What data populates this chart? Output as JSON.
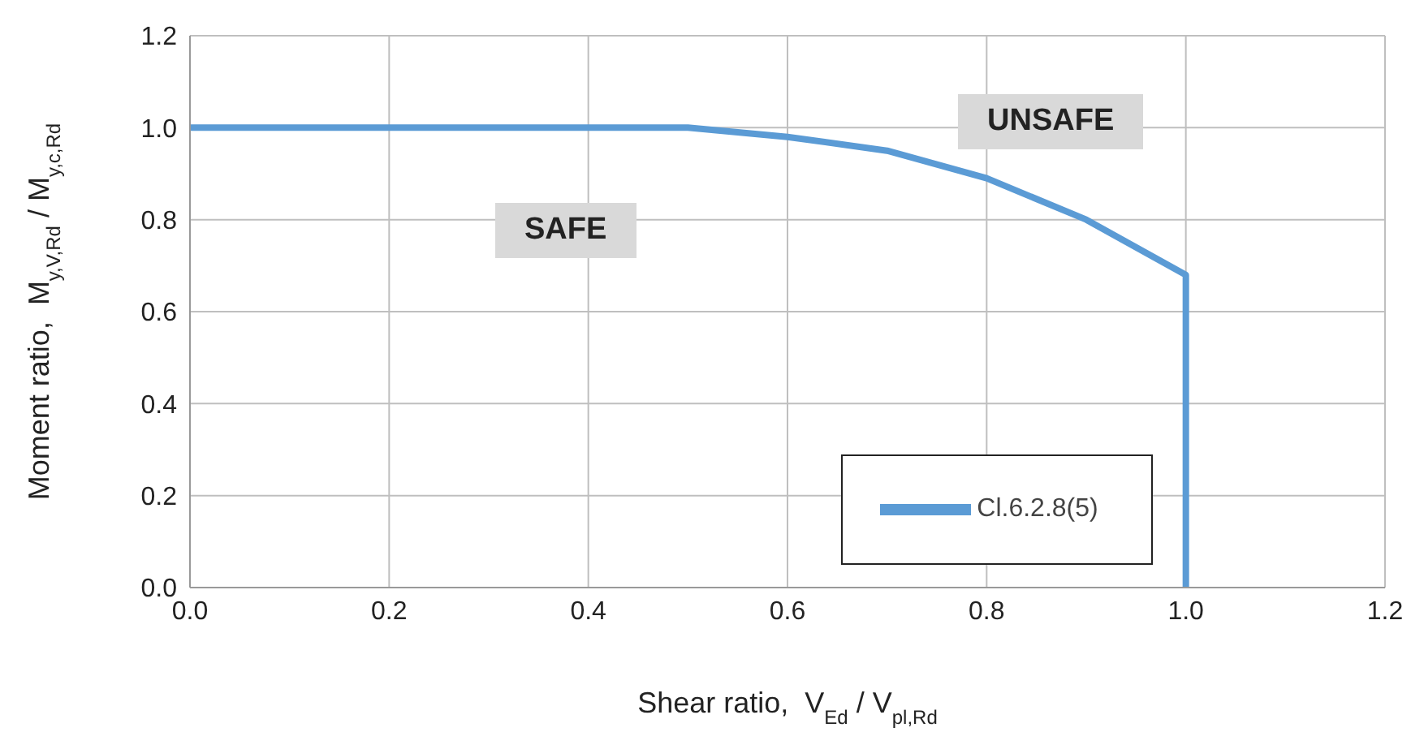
{
  "chart_data": {
    "type": "line",
    "xlabel": "Shear ratio,  V$_{Ed}$ / V$_{pl,Rd}$",
    "ylabel": "Moment ratio,  M$_{y,V,Rd}$ / M$_{y,c,Rd}$",
    "x": [
      0,
      0.5,
      0.6,
      0.7,
      0.8,
      0.9,
      1.0,
      1.0
    ],
    "series": [
      {
        "name": "Cl.6.2.8(5)",
        "color": "#5b9bd5",
        "values": [
          1,
          1,
          0.98,
          0.95,
          0.89,
          0.8,
          0.68,
          0
        ]
      }
    ],
    "xlim": [
      0,
      1.2
    ],
    "xticks": [
      {
        "value": 0,
        "label": "0.0"
      },
      {
        "value": 0.2,
        "label": "0.2"
      },
      {
        "value": 0.4,
        "label": "0.4"
      },
      {
        "value": 0.6,
        "label": "0.6"
      },
      {
        "value": 0.8,
        "label": "0.8"
      },
      {
        "value": 1,
        "label": "1.0"
      },
      {
        "value": 1.2,
        "label": "1.2"
      }
    ],
    "ylim": [
      0,
      1.2
    ],
    "yticks": [
      {
        "value": 0,
        "label": "0.0"
      },
      {
        "value": 0.2,
        "label": "0.2"
      },
      {
        "value": 0.4,
        "label": "0.4"
      },
      {
        "value": 0.6,
        "label": "0.6"
      },
      {
        "value": 0.8,
        "label": "0.8"
      },
      {
        "value": 1,
        "label": "1.0"
      },
      {
        "value": 1.2,
        "label": "1.2"
      }
    ],
    "grid": true,
    "legend": "bottom right",
    "marker": "none",
    "line_style": "solid",
    "annotations": [
      "SAFE",
      "UNSAFE"
    ]
  }
}
